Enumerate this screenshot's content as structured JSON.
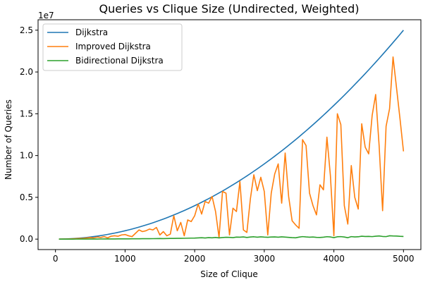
{
  "chart_data": {
    "type": "line",
    "title": "Queries vs Clique Size (Undirected, Weighted)",
    "xlabel": "Size of Clique",
    "ylabel": "Number of Queries",
    "y_multiplier_label": "1e7",
    "xlim": [
      -250,
      5250
    ],
    "ylim": [
      -1250000,
      26250000
    ],
    "x_ticks": [
      0,
      1000,
      2000,
      3000,
      4000,
      5000
    ],
    "x_tick_labels": [
      "0",
      "1000",
      "2000",
      "3000",
      "4000",
      "5000"
    ],
    "y_ticks": [
      0,
      5000000,
      10000000,
      15000000,
      20000000,
      25000000
    ],
    "y_tick_labels": [
      "0.0",
      "0.5",
      "1.0",
      "1.5",
      "2.0",
      "2.5"
    ],
    "grid": false,
    "legend_position": "upper-left",
    "x": [
      50,
      100,
      150,
      200,
      250,
      300,
      350,
      400,
      450,
      500,
      550,
      600,
      650,
      700,
      750,
      800,
      850,
      900,
      950,
      1000,
      1050,
      1100,
      1150,
      1200,
      1250,
      1300,
      1350,
      1400,
      1450,
      1500,
      1550,
      1600,
      1650,
      1700,
      1750,
      1800,
      1850,
      1900,
      1950,
      2000,
      2050,
      2100,
      2150,
      2200,
      2250,
      2300,
      2350,
      2400,
      2450,
      2500,
      2550,
      2600,
      2650,
      2700,
      2750,
      2800,
      2850,
      2900,
      2950,
      3000,
      3050,
      3100,
      3150,
      3200,
      3250,
      3300,
      3350,
      3400,
      3450,
      3500,
      3550,
      3600,
      3650,
      3700,
      3750,
      3800,
      3850,
      3900,
      3950,
      4000,
      4050,
      4100,
      4150,
      4200,
      4250,
      4300,
      4350,
      4400,
      4450,
      4500,
      4550,
      4600,
      4650,
      4700,
      4750,
      4800,
      4850,
      4900,
      4950,
      5000
    ],
    "series": [
      {
        "name": "Dijkstra",
        "color": "#1f77b4",
        "formula": "x^2"
      },
      {
        "name": "Improved Dijkstra",
        "color": "#ff7f0e",
        "values": [
          2500,
          8000,
          15000,
          25000,
          40000,
          60000,
          80000,
          100000,
          140000,
          180000,
          150000,
          250000,
          200000,
          300000,
          150000,
          350000,
          400000,
          350000,
          500000,
          550000,
          400000,
          300000,
          700000,
          1100000,
          900000,
          1000000,
          1200000,
          1100000,
          1400000,
          500000,
          900000,
          400000,
          600000,
          2800000,
          1000000,
          2000000,
          400000,
          2300000,
          2100000,
          2800000,
          4200000,
          3000000,
          4500000,
          4300000,
          5100000,
          3300000,
          200000,
          5700000,
          5500000,
          500000,
          3700000,
          3300000,
          6900000,
          1100000,
          800000,
          4800000,
          7700000,
          5800000,
          7400000,
          5700000,
          500000,
          5500000,
          7800000,
          9000000,
          4300000,
          10300000,
          5100000,
          2200000,
          1700000,
          1300000,
          11900000,
          11200000,
          5500000,
          4000000,
          2900000,
          6500000,
          5900000,
          12200000,
          7600000,
          400000,
          15000000,
          13700000,
          4000000,
          1800000,
          8800000,
          5000000,
          3600000,
          13800000,
          11000000,
          10200000,
          14800000,
          17300000,
          11200000,
          3400000,
          13500000,
          15600000,
          21800000,
          18100000,
          14400000,
          10500000
        ]
      },
      {
        "name": "Bidirectional Dijkstra",
        "color": "#2ca02c",
        "values": [
          500,
          1000,
          1500,
          2000,
          3000,
          4000,
          5000,
          6000,
          8000,
          10000,
          12000,
          14000,
          16000,
          18000,
          20000,
          22000,
          25000,
          28000,
          30000,
          32000,
          35000,
          38000,
          40000,
          45000,
          48000,
          50000,
          55000,
          58000,
          60000,
          70000,
          65000,
          75000,
          80000,
          85000,
          90000,
          95000,
          100000,
          110000,
          120000,
          130000,
          150000,
          170000,
          140000,
          180000,
          160000,
          200000,
          150000,
          190000,
          220000,
          210000,
          180000,
          240000,
          230000,
          260000,
          200000,
          250000,
          280000,
          230000,
          270000,
          240000,
          220000,
          250000,
          260000,
          230000,
          270000,
          240000,
          210000,
          180000,
          160000,
          240000,
          300000,
          260000,
          230000,
          250000,
          210000,
          200000,
          230000,
          290000,
          260000,
          180000,
          280000,
          300000,
          250000,
          170000,
          300000,
          260000,
          280000,
          350000,
          320000,
          330000,
          300000,
          350000,
          380000,
          320000,
          300000,
          400000,
          380000,
          370000,
          340000,
          320000
        ]
      }
    ]
  }
}
